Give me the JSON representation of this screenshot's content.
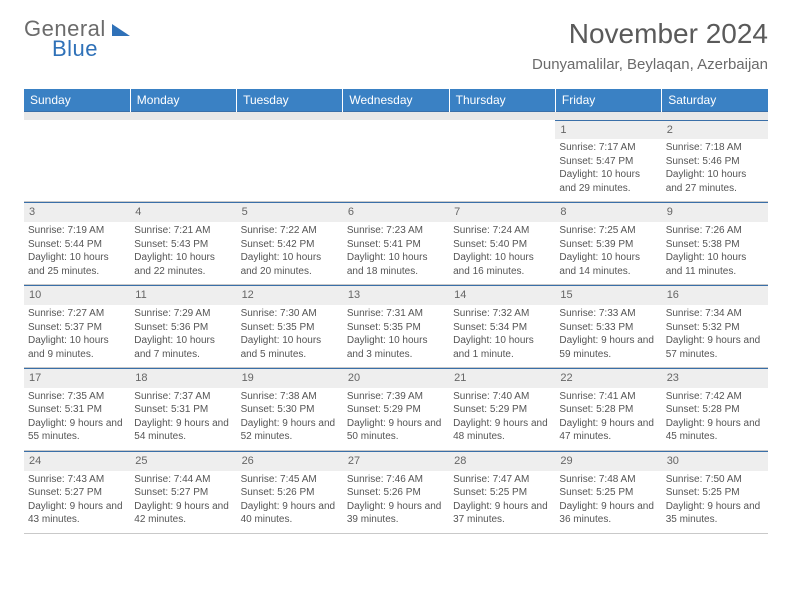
{
  "brand": {
    "word1": "General",
    "word2": "Blue"
  },
  "title": "November 2024",
  "location": "Dunyamalilar, Beylaqan, Azerbaijan",
  "colors": {
    "header_bg": "#3a81c4",
    "header_text": "#ffffff",
    "daynum_bg": "#eeeeee",
    "rule": "#3a6fa8",
    "text": "#555555",
    "brand_blue": "#2f71b8"
  },
  "day_headers": [
    "Sunday",
    "Monday",
    "Tuesday",
    "Wednesday",
    "Thursday",
    "Friday",
    "Saturday"
  ],
  "weeks": [
    [
      {
        "n": "",
        "sunrise": "",
        "sunset": "",
        "daylight": ""
      },
      {
        "n": "",
        "sunrise": "",
        "sunset": "",
        "daylight": ""
      },
      {
        "n": "",
        "sunrise": "",
        "sunset": "",
        "daylight": ""
      },
      {
        "n": "",
        "sunrise": "",
        "sunset": "",
        "daylight": ""
      },
      {
        "n": "",
        "sunrise": "",
        "sunset": "",
        "daylight": ""
      },
      {
        "n": "1",
        "sunrise": "Sunrise: 7:17 AM",
        "sunset": "Sunset: 5:47 PM",
        "daylight": "Daylight: 10 hours and 29 minutes."
      },
      {
        "n": "2",
        "sunrise": "Sunrise: 7:18 AM",
        "sunset": "Sunset: 5:46 PM",
        "daylight": "Daylight: 10 hours and 27 minutes."
      }
    ],
    [
      {
        "n": "3",
        "sunrise": "Sunrise: 7:19 AM",
        "sunset": "Sunset: 5:44 PM",
        "daylight": "Daylight: 10 hours and 25 minutes."
      },
      {
        "n": "4",
        "sunrise": "Sunrise: 7:21 AM",
        "sunset": "Sunset: 5:43 PM",
        "daylight": "Daylight: 10 hours and 22 minutes."
      },
      {
        "n": "5",
        "sunrise": "Sunrise: 7:22 AM",
        "sunset": "Sunset: 5:42 PM",
        "daylight": "Daylight: 10 hours and 20 minutes."
      },
      {
        "n": "6",
        "sunrise": "Sunrise: 7:23 AM",
        "sunset": "Sunset: 5:41 PM",
        "daylight": "Daylight: 10 hours and 18 minutes."
      },
      {
        "n": "7",
        "sunrise": "Sunrise: 7:24 AM",
        "sunset": "Sunset: 5:40 PM",
        "daylight": "Daylight: 10 hours and 16 minutes."
      },
      {
        "n": "8",
        "sunrise": "Sunrise: 7:25 AM",
        "sunset": "Sunset: 5:39 PM",
        "daylight": "Daylight: 10 hours and 14 minutes."
      },
      {
        "n": "9",
        "sunrise": "Sunrise: 7:26 AM",
        "sunset": "Sunset: 5:38 PM",
        "daylight": "Daylight: 10 hours and 11 minutes."
      }
    ],
    [
      {
        "n": "10",
        "sunrise": "Sunrise: 7:27 AM",
        "sunset": "Sunset: 5:37 PM",
        "daylight": "Daylight: 10 hours and 9 minutes."
      },
      {
        "n": "11",
        "sunrise": "Sunrise: 7:29 AM",
        "sunset": "Sunset: 5:36 PM",
        "daylight": "Daylight: 10 hours and 7 minutes."
      },
      {
        "n": "12",
        "sunrise": "Sunrise: 7:30 AM",
        "sunset": "Sunset: 5:35 PM",
        "daylight": "Daylight: 10 hours and 5 minutes."
      },
      {
        "n": "13",
        "sunrise": "Sunrise: 7:31 AM",
        "sunset": "Sunset: 5:35 PM",
        "daylight": "Daylight: 10 hours and 3 minutes."
      },
      {
        "n": "14",
        "sunrise": "Sunrise: 7:32 AM",
        "sunset": "Sunset: 5:34 PM",
        "daylight": "Daylight: 10 hours and 1 minute."
      },
      {
        "n": "15",
        "sunrise": "Sunrise: 7:33 AM",
        "sunset": "Sunset: 5:33 PM",
        "daylight": "Daylight: 9 hours and 59 minutes."
      },
      {
        "n": "16",
        "sunrise": "Sunrise: 7:34 AM",
        "sunset": "Sunset: 5:32 PM",
        "daylight": "Daylight: 9 hours and 57 minutes."
      }
    ],
    [
      {
        "n": "17",
        "sunrise": "Sunrise: 7:35 AM",
        "sunset": "Sunset: 5:31 PM",
        "daylight": "Daylight: 9 hours and 55 minutes."
      },
      {
        "n": "18",
        "sunrise": "Sunrise: 7:37 AM",
        "sunset": "Sunset: 5:31 PM",
        "daylight": "Daylight: 9 hours and 54 minutes."
      },
      {
        "n": "19",
        "sunrise": "Sunrise: 7:38 AM",
        "sunset": "Sunset: 5:30 PM",
        "daylight": "Daylight: 9 hours and 52 minutes."
      },
      {
        "n": "20",
        "sunrise": "Sunrise: 7:39 AM",
        "sunset": "Sunset: 5:29 PM",
        "daylight": "Daylight: 9 hours and 50 minutes."
      },
      {
        "n": "21",
        "sunrise": "Sunrise: 7:40 AM",
        "sunset": "Sunset: 5:29 PM",
        "daylight": "Daylight: 9 hours and 48 minutes."
      },
      {
        "n": "22",
        "sunrise": "Sunrise: 7:41 AM",
        "sunset": "Sunset: 5:28 PM",
        "daylight": "Daylight: 9 hours and 47 minutes."
      },
      {
        "n": "23",
        "sunrise": "Sunrise: 7:42 AM",
        "sunset": "Sunset: 5:28 PM",
        "daylight": "Daylight: 9 hours and 45 minutes."
      }
    ],
    [
      {
        "n": "24",
        "sunrise": "Sunrise: 7:43 AM",
        "sunset": "Sunset: 5:27 PM",
        "daylight": "Daylight: 9 hours and 43 minutes."
      },
      {
        "n": "25",
        "sunrise": "Sunrise: 7:44 AM",
        "sunset": "Sunset: 5:27 PM",
        "daylight": "Daylight: 9 hours and 42 minutes."
      },
      {
        "n": "26",
        "sunrise": "Sunrise: 7:45 AM",
        "sunset": "Sunset: 5:26 PM",
        "daylight": "Daylight: 9 hours and 40 minutes."
      },
      {
        "n": "27",
        "sunrise": "Sunrise: 7:46 AM",
        "sunset": "Sunset: 5:26 PM",
        "daylight": "Daylight: 9 hours and 39 minutes."
      },
      {
        "n": "28",
        "sunrise": "Sunrise: 7:47 AM",
        "sunset": "Sunset: 5:25 PM",
        "daylight": "Daylight: 9 hours and 37 minutes."
      },
      {
        "n": "29",
        "sunrise": "Sunrise: 7:48 AM",
        "sunset": "Sunset: 5:25 PM",
        "daylight": "Daylight: 9 hours and 36 minutes."
      },
      {
        "n": "30",
        "sunrise": "Sunrise: 7:50 AM",
        "sunset": "Sunset: 5:25 PM",
        "daylight": "Daylight: 9 hours and 35 minutes."
      }
    ]
  ]
}
